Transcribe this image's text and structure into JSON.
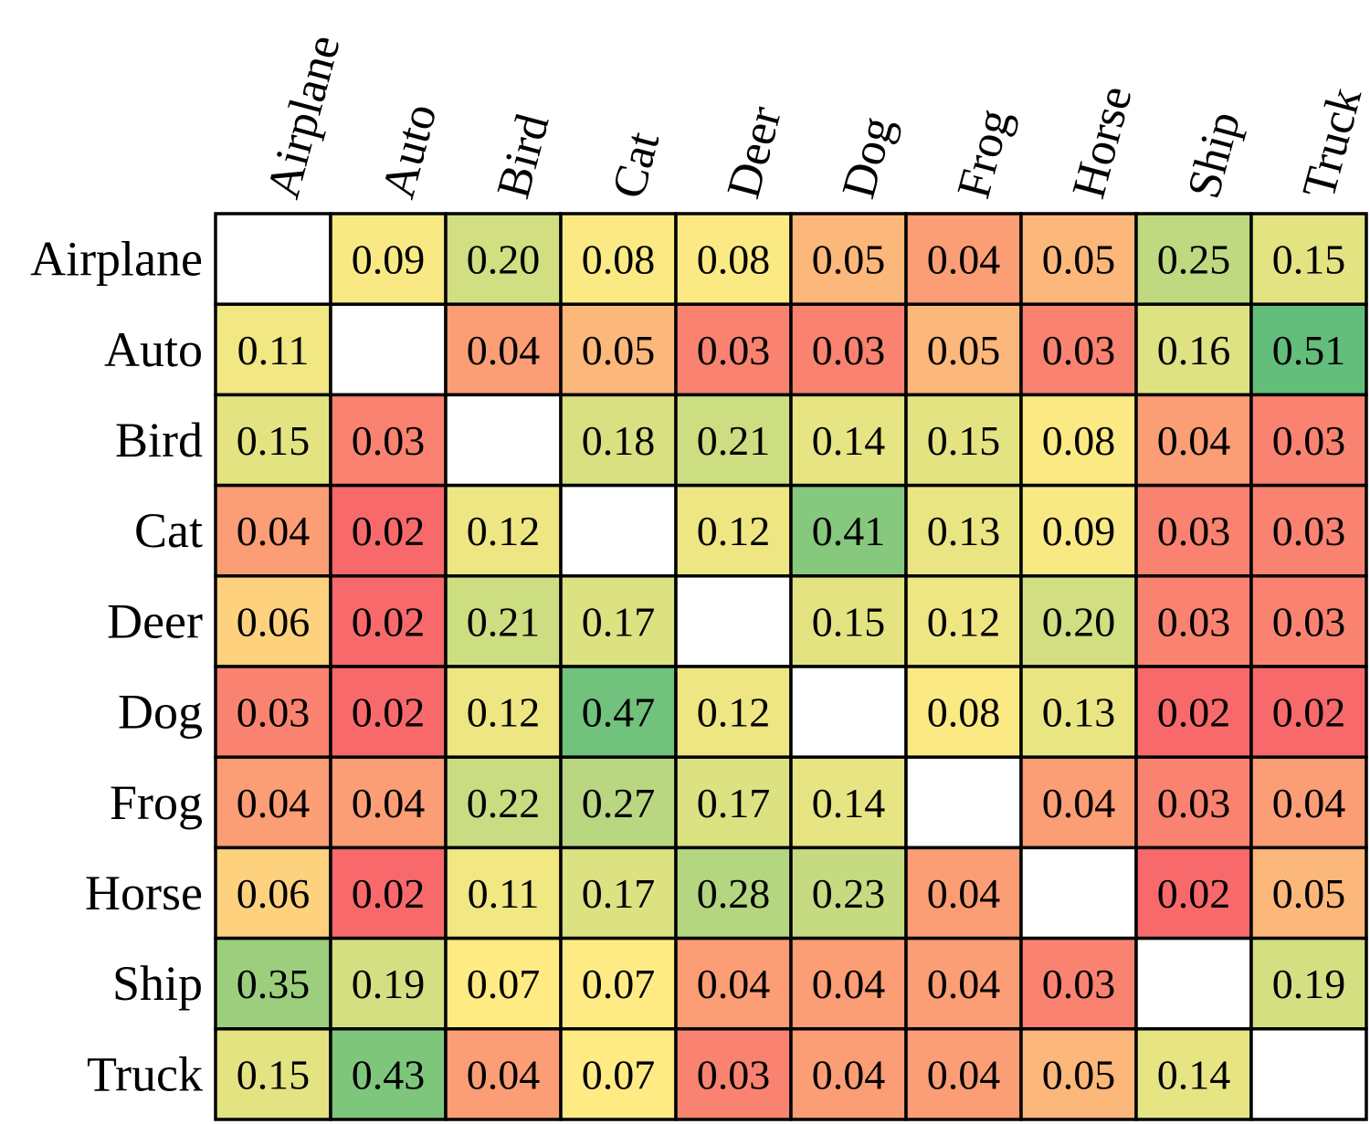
{
  "chart_data": {
    "type": "heatmap",
    "x_categories": [
      "Airplane",
      "Auto",
      "Bird",
      "Cat",
      "Deer",
      "Dog",
      "Frog",
      "Horse",
      "Ship",
      "Truck"
    ],
    "y_categories": [
      "Airplane",
      "Auto",
      "Bird",
      "Cat",
      "Deer",
      "Dog",
      "Frog",
      "Horse",
      "Ship",
      "Truck"
    ],
    "values": [
      [
        null,
        0.09,
        0.2,
        0.08,
        0.08,
        0.05,
        0.04,
        0.05,
        0.25,
        0.15
      ],
      [
        0.11,
        null,
        0.04,
        0.05,
        0.03,
        0.03,
        0.05,
        0.03,
        0.16,
        0.51
      ],
      [
        0.15,
        0.03,
        null,
        0.18,
        0.21,
        0.14,
        0.15,
        0.08,
        0.04,
        0.03
      ],
      [
        0.04,
        0.02,
        0.12,
        null,
        0.12,
        0.41,
        0.13,
        0.09,
        0.03,
        0.03
      ],
      [
        0.06,
        0.02,
        0.21,
        0.17,
        null,
        0.15,
        0.12,
        0.2,
        0.03,
        0.03
      ],
      [
        0.03,
        0.02,
        0.12,
        0.47,
        0.12,
        null,
        0.08,
        0.13,
        0.02,
        0.02
      ],
      [
        0.04,
        0.04,
        0.22,
        0.27,
        0.17,
        0.14,
        null,
        0.04,
        0.03,
        0.04
      ],
      [
        0.06,
        0.02,
        0.11,
        0.17,
        0.28,
        0.23,
        0.04,
        null,
        0.02,
        0.05
      ],
      [
        0.35,
        0.19,
        0.07,
        0.07,
        0.04,
        0.04,
        0.04,
        0.03,
        null,
        0.19
      ],
      [
        0.15,
        0.43,
        0.04,
        0.07,
        0.03,
        0.04,
        0.04,
        0.05,
        0.14,
        null
      ]
    ],
    "diagonal_empty": true,
    "colormap": {
      "low": "#f8696b",
      "mid": "#ffeb84",
      "high": "#63be7b",
      "empty": "#ffffff",
      "border": "#000000"
    },
    "title": "",
    "xlabel": "",
    "ylabel": "",
    "legend": "none",
    "grid": true
  }
}
